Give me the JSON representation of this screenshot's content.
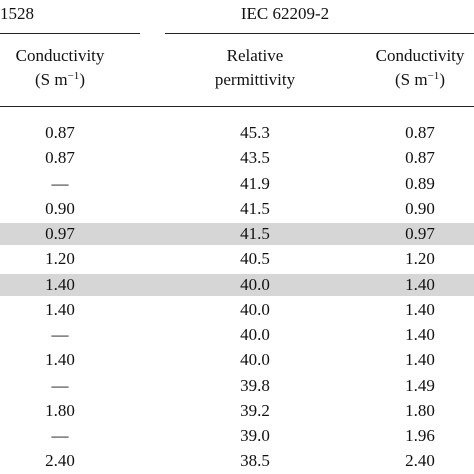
{
  "header": {
    "left_group": "1528",
    "right_group": "IEC 62209-2",
    "columns": [
      {
        "line1": "Conductivity",
        "unit": "(S m",
        "sup": "−1",
        "close": ")"
      },
      {
        "line1": "Relative",
        "line2": "permittivity"
      },
      {
        "line1": "Conductivity",
        "unit": "(S m",
        "sup": "−1",
        "close": ")"
      }
    ]
  },
  "table": {
    "highlighted_rows": [
      4,
      6
    ],
    "rows": [
      [
        "0.87",
        "45.3",
        "0.87"
      ],
      [
        "0.87",
        "43.5",
        "0.87"
      ],
      [
        "—",
        "41.9",
        "0.89"
      ],
      [
        "0.90",
        "41.5",
        "0.90"
      ],
      [
        "0.97",
        "41.5",
        "0.97"
      ],
      [
        "1.20",
        "40.5",
        "1.20"
      ],
      [
        "1.40",
        "40.0",
        "1.40"
      ],
      [
        "1.40",
        "40.0",
        "1.40"
      ],
      [
        "—",
        "40.0",
        "1.40"
      ],
      [
        "1.40",
        "40.0",
        "1.40"
      ],
      [
        "—",
        "39.8",
        "1.49"
      ],
      [
        "1.80",
        "39.2",
        "1.80"
      ],
      [
        "—",
        "39.0",
        "1.96"
      ],
      [
        "2.40",
        "38.5",
        "2.40"
      ]
    ]
  }
}
